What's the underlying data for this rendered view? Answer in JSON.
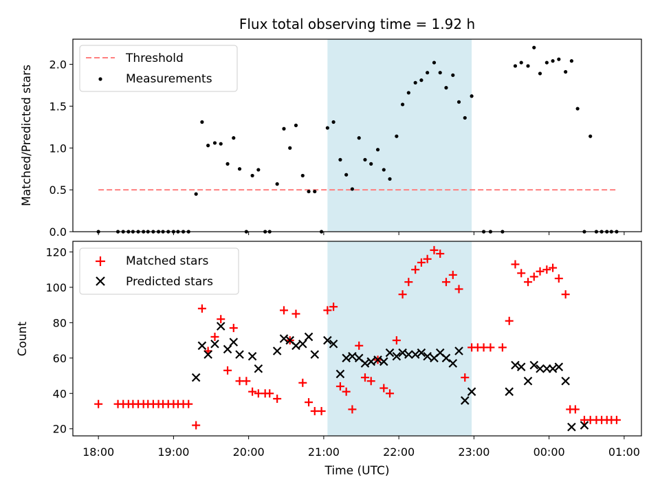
{
  "chart_data": {
    "title": "Flux total observing time = 1.92 h",
    "type": "scatter",
    "shared_x": {
      "label": "Time (UTC)",
      "range_hours": [
        17.66,
        25.23
      ],
      "tick_labels": [
        "18:00",
        "19:00",
        "20:00",
        "21:00",
        "22:00",
        "23:00",
        "00:00",
        "01:00"
      ],
      "tick_hours": [
        18,
        19,
        20,
        21,
        22,
        23,
        24,
        25
      ],
      "shaded_interval_hours": [
        21.05,
        22.97
      ],
      "shade_color": "#add8e6"
    },
    "top": {
      "ylabel": "Matched/Predicted stars",
      "ylim": [
        0,
        2.3
      ],
      "ytick_values": [
        0,
        0.5,
        1,
        1.5,
        2
      ],
      "ytick_labels": [
        "0.0",
        "0.5",
        "1.0",
        "1.5",
        "2.0"
      ],
      "threshold": {
        "name": "Threshold",
        "value": 0.5,
        "x_range_hours": [
          18,
          24.9
        ],
        "color": "#ff7f7f"
      },
      "legend": {
        "position": "top-left",
        "entries": [
          "Threshold",
          "Measurements"
        ]
      },
      "measurements": {
        "name": "Measurements",
        "color": "#000000",
        "points": [
          [
            18.0,
            0
          ],
          [
            18.26,
            0
          ],
          [
            18.33,
            0
          ],
          [
            18.4,
            0
          ],
          [
            18.46,
            0
          ],
          [
            18.53,
            0
          ],
          [
            18.6,
            0
          ],
          [
            18.66,
            0
          ],
          [
            18.73,
            0
          ],
          [
            18.8,
            0
          ],
          [
            18.86,
            0
          ],
          [
            18.93,
            0
          ],
          [
            19.0,
            0
          ],
          [
            19.06,
            0
          ],
          [
            19.13,
            0
          ],
          [
            19.2,
            0
          ],
          [
            19.3,
            0.45
          ],
          [
            19.38,
            1.31
          ],
          [
            19.46,
            1.03
          ],
          [
            19.55,
            1.06
          ],
          [
            19.63,
            1.05
          ],
          [
            19.72,
            0.81
          ],
          [
            19.8,
            1.12
          ],
          [
            19.88,
            0.75
          ],
          [
            19.97,
            0
          ],
          [
            20.05,
            0.67
          ],
          [
            20.13,
            0.74
          ],
          [
            20.22,
            0
          ],
          [
            20.28,
            0
          ],
          [
            20.38,
            0.57
          ],
          [
            20.47,
            1.23
          ],
          [
            20.55,
            1.0
          ],
          [
            20.63,
            1.27
          ],
          [
            20.72,
            0.67
          ],
          [
            20.8,
            0.48
          ],
          [
            20.88,
            0.48
          ],
          [
            20.97,
            0
          ],
          [
            21.05,
            1.24
          ],
          [
            21.13,
            1.31
          ],
          [
            21.22,
            0.86
          ],
          [
            21.3,
            0.68
          ],
          [
            21.38,
            0.51
          ],
          [
            21.47,
            1.12
          ],
          [
            21.55,
            0.86
          ],
          [
            21.63,
            0.81
          ],
          [
            21.72,
            0.98
          ],
          [
            21.8,
            0.74
          ],
          [
            21.88,
            0.63
          ],
          [
            21.97,
            1.14
          ],
          [
            22.05,
            1.52
          ],
          [
            22.13,
            1.66
          ],
          [
            22.22,
            1.78
          ],
          [
            22.3,
            1.81
          ],
          [
            22.38,
            1.9
          ],
          [
            22.47,
            2.02
          ],
          [
            22.55,
            1.9
          ],
          [
            22.63,
            1.72
          ],
          [
            22.72,
            1.87
          ],
          [
            22.8,
            1.55
          ],
          [
            22.88,
            1.36
          ],
          [
            22.97,
            1.62
          ],
          [
            23.13,
            0
          ],
          [
            23.22,
            0
          ],
          [
            23.38,
            0
          ],
          [
            23.55,
            1.98
          ],
          [
            23.63,
            2.02
          ],
          [
            23.72,
            1.98
          ],
          [
            23.8,
            2.2
          ],
          [
            23.88,
            1.89
          ],
          [
            23.97,
            2.02
          ],
          [
            24.05,
            2.04
          ],
          [
            24.13,
            2.06
          ],
          [
            24.22,
            1.91
          ],
          [
            24.3,
            2.04
          ],
          [
            24.38,
            1.47
          ],
          [
            24.47,
            0
          ],
          [
            24.55,
            1.14
          ],
          [
            24.63,
            0
          ],
          [
            24.7,
            0
          ],
          [
            24.77,
            0
          ],
          [
            24.83,
            0
          ],
          [
            24.9,
            0
          ]
        ]
      }
    },
    "bottom": {
      "ylabel": "Count",
      "ylim": [
        16,
        126
      ],
      "ytick_values": [
        20,
        40,
        60,
        80,
        100,
        120
      ],
      "ytick_labels": [
        "20",
        "40",
        "60",
        "80",
        "100",
        "120"
      ],
      "legend": {
        "position": "top-left",
        "entries": [
          "Matched stars",
          "Predicted stars"
        ]
      },
      "series": [
        {
          "name": "Matched stars",
          "marker": "plus",
          "color": "#ff0000",
          "points": [
            [
              18.0,
              34
            ],
            [
              18.26,
              34
            ],
            [
              18.33,
              34
            ],
            [
              18.4,
              34
            ],
            [
              18.46,
              34
            ],
            [
              18.53,
              34
            ],
            [
              18.6,
              34
            ],
            [
              18.66,
              34
            ],
            [
              18.73,
              34
            ],
            [
              18.8,
              34
            ],
            [
              18.86,
              34
            ],
            [
              18.93,
              34
            ],
            [
              19.0,
              34
            ],
            [
              19.06,
              34
            ],
            [
              19.13,
              34
            ],
            [
              19.2,
              34
            ],
            [
              19.3,
              22
            ],
            [
              19.38,
              88
            ],
            [
              19.46,
              64
            ],
            [
              19.55,
              72
            ],
            [
              19.63,
              82
            ],
            [
              19.72,
              53
            ],
            [
              19.8,
              77
            ],
            [
              19.88,
              47
            ],
            [
              19.97,
              47
            ],
            [
              20.05,
              41
            ],
            [
              20.13,
              40
            ],
            [
              20.22,
              40
            ],
            [
              20.28,
              40
            ],
            [
              20.38,
              37
            ],
            [
              20.47,
              87
            ],
            [
              20.55,
              70
            ],
            [
              20.63,
              85
            ],
            [
              20.72,
              46
            ],
            [
              20.8,
              35
            ],
            [
              20.88,
              30
            ],
            [
              20.97,
              30
            ],
            [
              21.05,
              87
            ],
            [
              21.13,
              89
            ],
            [
              21.22,
              44
            ],
            [
              21.3,
              41
            ],
            [
              21.38,
              31
            ],
            [
              21.47,
              67
            ],
            [
              21.55,
              49
            ],
            [
              21.63,
              47
            ],
            [
              21.72,
              59
            ],
            [
              21.8,
              43
            ],
            [
              21.88,
              40
            ],
            [
              21.97,
              70
            ],
            [
              22.05,
              96
            ],
            [
              22.13,
              103
            ],
            [
              22.22,
              110
            ],
            [
              22.3,
              114
            ],
            [
              22.38,
              116
            ],
            [
              22.47,
              121
            ],
            [
              22.55,
              119
            ],
            [
              22.63,
              103
            ],
            [
              22.72,
              107
            ],
            [
              22.8,
              99
            ],
            [
              22.88,
              49
            ],
            [
              22.97,
              66
            ],
            [
              23.05,
              66
            ],
            [
              23.13,
              66
            ],
            [
              23.22,
              66
            ],
            [
              23.38,
              66
            ],
            [
              23.47,
              81
            ],
            [
              23.55,
              113
            ],
            [
              23.63,
              108
            ],
            [
              23.72,
              103
            ],
            [
              23.8,
              106
            ],
            [
              23.88,
              109
            ],
            [
              23.97,
              110
            ],
            [
              24.05,
              111
            ],
            [
              24.13,
              105
            ],
            [
              24.22,
              96
            ],
            [
              24.28,
              31
            ],
            [
              24.35,
              31
            ],
            [
              24.47,
              25
            ],
            [
              24.55,
              25
            ],
            [
              24.63,
              25
            ],
            [
              24.7,
              25
            ],
            [
              24.77,
              25
            ],
            [
              24.83,
              25
            ],
            [
              24.9,
              25
            ]
          ]
        },
        {
          "name": "Predicted stars",
          "marker": "x",
          "color": "#000000",
          "points": [
            [
              19.3,
              49
            ],
            [
              19.38,
              67
            ],
            [
              19.46,
              62
            ],
            [
              19.55,
              68
            ],
            [
              19.63,
              78
            ],
            [
              19.72,
              65
            ],
            [
              19.8,
              69
            ],
            [
              19.88,
              62
            ],
            [
              20.05,
              61
            ],
            [
              20.13,
              54
            ],
            [
              20.38,
              64
            ],
            [
              20.47,
              71
            ],
            [
              20.55,
              70
            ],
            [
              20.63,
              67
            ],
            [
              20.72,
              68
            ],
            [
              20.8,
              72
            ],
            [
              20.88,
              62
            ],
            [
              21.05,
              70
            ],
            [
              21.13,
              68
            ],
            [
              21.22,
              51
            ],
            [
              21.3,
              60
            ],
            [
              21.38,
              61
            ],
            [
              21.47,
              60
            ],
            [
              21.55,
              57
            ],
            [
              21.63,
              58
            ],
            [
              21.72,
              59
            ],
            [
              21.8,
              58
            ],
            [
              21.88,
              63
            ],
            [
              21.97,
              61
            ],
            [
              22.05,
              63
            ],
            [
              22.13,
              62
            ],
            [
              22.22,
              62
            ],
            [
              22.3,
              63
            ],
            [
              22.38,
              61
            ],
            [
              22.47,
              60
            ],
            [
              22.55,
              63
            ],
            [
              22.63,
              60
            ],
            [
              22.72,
              57
            ],
            [
              22.8,
              64
            ],
            [
              22.88,
              36
            ],
            [
              22.97,
              41
            ],
            [
              23.47,
              41
            ],
            [
              23.55,
              56
            ],
            [
              23.63,
              55
            ],
            [
              23.72,
              47
            ],
            [
              23.8,
              56
            ],
            [
              23.88,
              54
            ],
            [
              23.97,
              54
            ],
            [
              24.05,
              54
            ],
            [
              24.13,
              55
            ],
            [
              24.22,
              47
            ],
            [
              24.3,
              21
            ],
            [
              24.47,
              22
            ]
          ]
        }
      ]
    }
  }
}
